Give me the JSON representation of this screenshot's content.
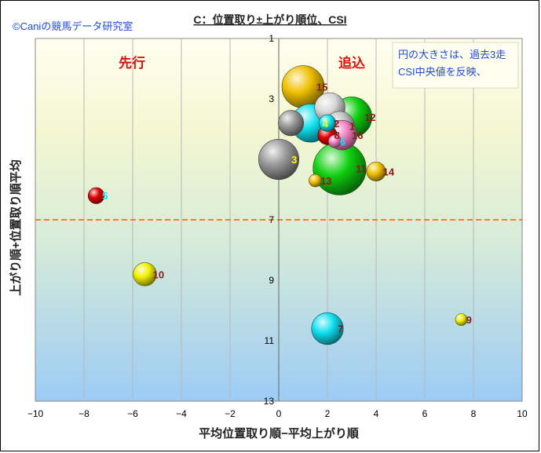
{
  "chart_data": {
    "type": "scatter",
    "title": "C：位置取り±上がり順位、CSI",
    "credit": "©Caniの競馬データ研究室",
    "xlabel": "平均位置取り順−平均上がり順",
    "ylabel": "上がり順+位置取り順平均",
    "xlim": [
      -10,
      10
    ],
    "ylim": [
      1,
      13
    ],
    "y_reversed": true,
    "x_ticks": [
      -10,
      -8,
      -6,
      -4,
      -2,
      0,
      2,
      4,
      6,
      8,
      10
    ],
    "y_ticks": [
      1,
      3,
      5,
      7,
      9,
      11,
      13
    ],
    "reference_line": {
      "y": 7,
      "color": "#f07020",
      "style": "dashed"
    },
    "grid": "vertical",
    "annotations": {
      "left": "先行",
      "right": "追込",
      "note_line1": "円の大きさは、過去3走",
      "note_line2": "CSI中央値を反映、"
    },
    "points": [
      {
        "label": "15",
        "x": 1.0,
        "y": 2.6,
        "size": 1.0,
        "color": "#f0c000",
        "labelColor": "#8b1a1a"
      },
      {
        "label": "",
        "x": 2.1,
        "y": 3.3,
        "size": 0.72,
        "color": "#d8d8d8",
        "labelColor": "#8b1a1a"
      },
      {
        "label": "12",
        "x": 3.0,
        "y": 3.6,
        "size": 0.95,
        "color": "#10d010",
        "labelColor": "#8b1a1a"
      },
      {
        "label": "",
        "x": 0.5,
        "y": 3.8,
        "size": 0.6,
        "color": "#999999",
        "labelColor": "#8b1a1a"
      },
      {
        "label": "4",
        "x": 1.3,
        "y": 3.8,
        "size": 0.9,
        "color": "#10e0f0",
        "labelColor": "#ffff00"
      },
      {
        "label": "1",
        "x": 2.5,
        "y": 3.9,
        "size": 0.7,
        "color": "#c0c0c0",
        "labelColor": "#8b1a1a"
      },
      {
        "label": "2",
        "x": 2.0,
        "y": 3.8,
        "size": 0.4,
        "color": "#10e0f0",
        "labelColor": "#8b1a1a"
      },
      {
        "label": "8",
        "x": 2.0,
        "y": 4.2,
        "size": 0.45,
        "color": "#e00000",
        "labelColor": "#8b1a1a"
      },
      {
        "label": "16",
        "x": 2.6,
        "y": 4.2,
        "size": 0.7,
        "color": "#f080c0",
        "labelColor": "#8b1a1a"
      },
      {
        "label": "6",
        "x": 2.3,
        "y": 4.4,
        "size": 0.3,
        "color": "#f080c0",
        "labelColor": "#10e0f0"
      },
      {
        "label": "3",
        "x": 0.0,
        "y": 5.0,
        "size": 0.95,
        "color": "#9a9a9a",
        "labelColor": "#ffff00"
      },
      {
        "label": "11",
        "x": 2.5,
        "y": 5.3,
        "size": 1.25,
        "color": "#10d010",
        "labelColor": "#8b1a1a"
      },
      {
        "label": "14",
        "x": 4.0,
        "y": 5.4,
        "size": 0.45,
        "color": "#f0c000",
        "labelColor": "#8b1a1a"
      },
      {
        "label": "13",
        "x": 1.5,
        "y": 5.7,
        "size": 0.3,
        "color": "#f0c000",
        "labelColor": "#8b1a1a"
      },
      {
        "label": "5",
        "x": -7.5,
        "y": 6.2,
        "size": 0.38,
        "color": "#e00000",
        "labelColor": "#10e0f0"
      },
      {
        "label": "10",
        "x": -5.5,
        "y": 8.8,
        "size": 0.55,
        "color": "#f0f000",
        "labelColor": "#8b1a1a"
      },
      {
        "label": "7",
        "x": 2.0,
        "y": 10.6,
        "size": 0.75,
        "color": "#10e0f0",
        "labelColor": "#8b1a1a"
      },
      {
        "label": "9",
        "x": 7.5,
        "y": 10.3,
        "size": 0.28,
        "color": "#f0f000",
        "labelColor": "#8b1a1a"
      }
    ]
  }
}
